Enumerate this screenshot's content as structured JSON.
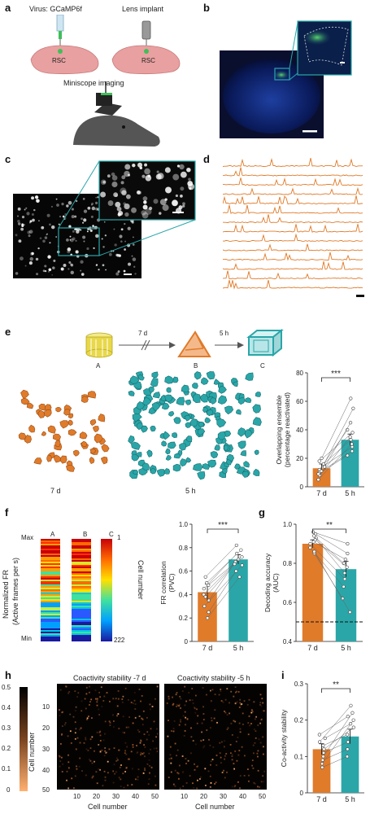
{
  "panel_labels": {
    "a": "a",
    "b": "b",
    "c": "c",
    "d": "d",
    "e": "e",
    "f": "f",
    "g": "g",
    "h": "h",
    "i": "i"
  },
  "panel_a": {
    "virus_label": "Virus: GCaMP6f",
    "lens_label": "Lens implant",
    "rsc_left": "RSC",
    "rsc_right": "RSC",
    "imaging_label": "Miniscope imaging"
  },
  "panel_e": {
    "ctx_a": "A",
    "ctx_b": "B",
    "ctx_c": "C",
    "interval_1": "7 d",
    "interval_2": "5 h",
    "map_label_1": "7 d",
    "map_label_2": "5 h",
    "bar_chart": {
      "ylabel_1": "Overlapping ensemble",
      "ylabel_2": "(percentage reactivated)",
      "yticks": [
        "0",
        "20",
        "40",
        "60",
        "80"
      ],
      "sig": "***",
      "categories": [
        "7 d",
        "5 h"
      ]
    }
  },
  "panel_f": {
    "scale_max": "Max",
    "scale_min": "Min",
    "ylabel_1": "Normalized FR",
    "ylabel_2": "(Active frames per s)",
    "cols": [
      "A",
      "B",
      "C"
    ],
    "cell_top": "1",
    "cell_bottom": "222",
    "cell_axis": "Cell number",
    "bar_chart": {
      "ylabel_1": "FR correlation",
      "ylabel_2": "(PVC)",
      "yticks": [
        "0",
        "0.2",
        "0.4",
        "0.6",
        "0.8",
        "1.0"
      ],
      "sig": "***",
      "categories": [
        "7 d",
        "5 h"
      ]
    }
  },
  "panel_g": {
    "ylabel": "Decoding accuracy",
    "ylabel_2": "(AUC)",
    "yticks": [
      "0.4",
      "0.6",
      "0.8",
      "1.0"
    ],
    "sig": "**",
    "categories": [
      "7 d",
      "5 h"
    ]
  },
  "panel_h": {
    "scale_ticks": [
      "0.5",
      "0.4",
      "0.3",
      "0.2",
      "0.1",
      "0"
    ],
    "title_1": "Coactivity stability -7 d",
    "title_2": "Coactivity stability -5 h",
    "yticks": [
      "10",
      "20",
      "30",
      "40",
      "50"
    ],
    "xticks": [
      "10",
      "20",
      "30",
      "40",
      "50"
    ],
    "ylabel": "Cell number",
    "xlabel_1": "Cell number",
    "xlabel_2": "Cell number"
  },
  "panel_i": {
    "ylabel": "Co-activity stability",
    "yticks": [
      "0",
      "0.1",
      "0.2",
      "0.3"
    ],
    "sig": "**",
    "categories": [
      "7 d",
      "5 h"
    ]
  },
  "chart_data": [
    {
      "type": "bar",
      "panel": "e",
      "categories": [
        "7 d",
        "5 h"
      ],
      "values": [
        13,
        33
      ],
      "errors": [
        3,
        4
      ],
      "ylim": [
        0,
        80
      ],
      "ylabel": "Overlapping ensemble (percentage reactivated)",
      "colors": [
        "#e07b2a",
        "#2aa6a8"
      ],
      "pairs": [
        [
          8,
          35
        ],
        [
          12,
          40
        ],
        [
          15,
          28
        ],
        [
          10,
          55
        ],
        [
          18,
          38
        ],
        [
          5,
          30
        ],
        [
          20,
          62
        ],
        [
          14,
          45
        ],
        [
          9,
          22
        ],
        [
          11,
          25
        ],
        [
          16,
          33
        ]
      ]
    },
    {
      "type": "bar",
      "panel": "f",
      "categories": [
        "7 d",
        "5 h"
      ],
      "values": [
        0.42,
        0.7
      ],
      "errors": [
        0.07,
        0.04
      ],
      "ylim": [
        0,
        1.0
      ],
      "ylabel": "FR correlation (PVC)",
      "colors": [
        "#e07b2a",
        "#2aa6a8"
      ],
      "pairs": [
        [
          0.55,
          0.82
        ],
        [
          0.5,
          0.78
        ],
        [
          0.45,
          0.75
        ],
        [
          0.4,
          0.7
        ],
        [
          0.35,
          0.68
        ],
        [
          0.3,
          0.65
        ],
        [
          0.25,
          0.6
        ],
        [
          0.48,
          0.72
        ],
        [
          0.38,
          0.66
        ],
        [
          0.2,
          0.55
        ]
      ]
    },
    {
      "type": "bar",
      "panel": "g",
      "categories": [
        "7 d",
        "5 h"
      ],
      "values": [
        0.9,
        0.77
      ],
      "errors": [
        0.02,
        0.04
      ],
      "ylim": [
        0.4,
        1.0
      ],
      "chance": 0.5,
      "ylabel": "Decoding accuracy (AUC)",
      "colors": [
        "#e07b2a",
        "#2aa6a8"
      ],
      "pairs": [
        [
          0.96,
          0.9
        ],
        [
          0.95,
          0.85
        ],
        [
          0.93,
          0.8
        ],
        [
          0.92,
          0.78
        ],
        [
          0.9,
          0.72
        ],
        [
          0.88,
          0.68
        ],
        [
          0.85,
          0.62
        ],
        [
          0.94,
          0.75
        ],
        [
          0.86,
          0.55
        ],
        [
          0.91,
          0.82
        ]
      ]
    },
    {
      "type": "bar",
      "panel": "i",
      "categories": [
        "7 d",
        "5 h"
      ],
      "values": [
        0.12,
        0.155
      ],
      "errors": [
        0.015,
        0.02
      ],
      "ylim": [
        0,
        0.3
      ],
      "ylabel": "Co-activity stability",
      "colors": [
        "#e07b2a",
        "#2aa6a8"
      ],
      "pairs": [
        [
          0.08,
          0.2
        ],
        [
          0.1,
          0.22
        ],
        [
          0.12,
          0.18
        ],
        [
          0.14,
          0.24
        ],
        [
          0.09,
          0.12
        ],
        [
          0.13,
          0.16
        ],
        [
          0.15,
          0.19
        ],
        [
          0.11,
          0.14
        ],
        [
          0.07,
          0.1
        ],
        [
          0.16,
          0.21
        ]
      ]
    }
  ],
  "colors": {
    "orange": "#e07b2a",
    "teal": "#2aa6a8",
    "yellow": "#e8d84a"
  }
}
